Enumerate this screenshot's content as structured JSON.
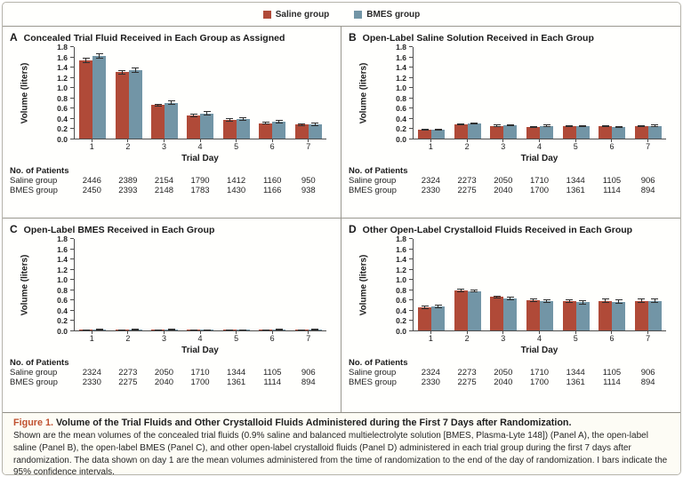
{
  "legend": {
    "items": [
      {
        "label": "Saline group",
        "color": "#b04a38"
      },
      {
        "label": "BMES group",
        "color": "#7295a6"
      }
    ]
  },
  "labels": {
    "no_of_patients": "No. of Patients"
  },
  "chart_data": [
    {
      "type": "bar",
      "panel": "A",
      "title": "Concealed Trial Fluid Received in Each Group as Assigned",
      "categories": [
        "1",
        "2",
        "3",
        "4",
        "5",
        "6",
        "7"
      ],
      "series": [
        {
          "name": "Saline group",
          "color": "#b04a38",
          "values": [
            1.52,
            1.29,
            0.65,
            0.45,
            0.36,
            0.3,
            0.27
          ],
          "ci": [
            0.05,
            0.05,
            0.03,
            0.03,
            0.03,
            0.03,
            0.03
          ]
        },
        {
          "name": "BMES group",
          "color": "#7295a6",
          "values": [
            1.61,
            1.33,
            0.7,
            0.49,
            0.38,
            0.33,
            0.28
          ],
          "ci": [
            0.05,
            0.05,
            0.04,
            0.04,
            0.03,
            0.04,
            0.04
          ]
        }
      ],
      "xlabel": "Trial Day",
      "ylabel": "Volume (liters)",
      "ylim": [
        0,
        1.8
      ],
      "yticks": [
        0.0,
        0.2,
        0.4,
        0.6,
        0.8,
        1.0,
        1.2,
        1.4,
        1.6,
        1.8
      ],
      "patients": [
        {
          "label": "Saline group",
          "values": [
            "2446",
            "2389",
            "2154",
            "1790",
            "1412",
            "1160",
            "950"
          ]
        },
        {
          "label": "BMES group",
          "values": [
            "2450",
            "2393",
            "2148",
            "1783",
            "1430",
            "1166",
            "938"
          ]
        }
      ]
    },
    {
      "type": "bar",
      "panel": "B",
      "title": "Open-Label Saline Solution Received in Each Group",
      "categories": [
        "1",
        "2",
        "3",
        "4",
        "5",
        "6",
        "7"
      ],
      "series": [
        {
          "name": "Saline group",
          "color": "#b04a38",
          "values": [
            0.17,
            0.28,
            0.25,
            0.23,
            0.24,
            0.24,
            0.24
          ],
          "ci": [
            0.015,
            0.02,
            0.02,
            0.02,
            0.02,
            0.02,
            0.02
          ]
        },
        {
          "name": "BMES group",
          "color": "#7295a6",
          "values": [
            0.18,
            0.3,
            0.26,
            0.25,
            0.24,
            0.23,
            0.25
          ],
          "ci": [
            0.015,
            0.02,
            0.02,
            0.02,
            0.02,
            0.02,
            0.02
          ]
        }
      ],
      "xlabel": "Trial Day",
      "ylabel": "Volume (liters)",
      "ylim": [
        0,
        1.8
      ],
      "yticks": [
        0.0,
        0.2,
        0.4,
        0.6,
        0.8,
        1.0,
        1.2,
        1.4,
        1.6,
        1.8
      ],
      "patients": [
        {
          "label": "Saline group",
          "values": [
            "2324",
            "2273",
            "2050",
            "1710",
            "1344",
            "1105",
            "906"
          ]
        },
        {
          "label": "BMES group",
          "values": [
            "2330",
            "2275",
            "2040",
            "1700",
            "1361",
            "1114",
            "894"
          ]
        }
      ]
    },
    {
      "type": "bar",
      "panel": "C",
      "title": "Open-Label BMES Received in Each Group",
      "categories": [
        "1",
        "2",
        "3",
        "4",
        "5",
        "6",
        "7"
      ],
      "series": [
        {
          "name": "Saline group",
          "color": "#b04a38",
          "values": [
            0.01,
            0.01,
            0.01,
            0.01,
            0.01,
            0.01,
            0.01
          ],
          "ci": [
            0.01,
            0.01,
            0.01,
            0.01,
            0.01,
            0.01,
            0.01
          ]
        },
        {
          "name": "BMES group",
          "color": "#7295a6",
          "values": [
            0.02,
            0.02,
            0.02,
            0.01,
            0.01,
            0.02,
            0.02
          ],
          "ci": [
            0.01,
            0.01,
            0.01,
            0.01,
            0.01,
            0.01,
            0.01
          ]
        }
      ],
      "xlabel": "Trial Day",
      "ylabel": "Volume (liters)",
      "ylim": [
        0,
        1.8
      ],
      "yticks": [
        0.0,
        0.2,
        0.4,
        0.6,
        0.8,
        1.0,
        1.2,
        1.4,
        1.6,
        1.8
      ],
      "patients": [
        {
          "label": "Saline group",
          "values": [
            "2324",
            "2273",
            "2050",
            "1710",
            "1344",
            "1105",
            "906"
          ]
        },
        {
          "label": "BMES group",
          "values": [
            "2330",
            "2275",
            "2040",
            "1700",
            "1361",
            "1114",
            "894"
          ]
        }
      ]
    },
    {
      "type": "bar",
      "panel": "D",
      "title": "Other Open-Label Crystalloid Fluids Received in Each Group",
      "categories": [
        "1",
        "2",
        "3",
        "4",
        "5",
        "6",
        "7"
      ],
      "series": [
        {
          "name": "Saline group",
          "color": "#b04a38",
          "values": [
            0.45,
            0.78,
            0.65,
            0.59,
            0.57,
            0.58,
            0.58
          ],
          "ci": [
            0.03,
            0.03,
            0.03,
            0.03,
            0.04,
            0.04,
            0.05
          ]
        },
        {
          "name": "BMES group",
          "color": "#7295a6",
          "values": [
            0.47,
            0.77,
            0.62,
            0.57,
            0.55,
            0.56,
            0.58
          ],
          "ci": [
            0.03,
            0.03,
            0.03,
            0.03,
            0.04,
            0.04,
            0.05
          ]
        }
      ],
      "xlabel": "Trial Day",
      "ylabel": "Volume (liters)",
      "ylim": [
        0,
        1.8
      ],
      "yticks": [
        0.0,
        0.2,
        0.4,
        0.6,
        0.8,
        1.0,
        1.2,
        1.4,
        1.6,
        1.8
      ],
      "patients": [
        {
          "label": "Saline group",
          "values": [
            "2324",
            "2273",
            "2050",
            "1710",
            "1344",
            "1105",
            "906"
          ]
        },
        {
          "label": "BMES group",
          "values": [
            "2330",
            "2275",
            "2040",
            "1700",
            "1361",
            "1114",
            "894"
          ]
        }
      ]
    }
  ],
  "caption": {
    "label": "Figure 1.",
    "title": "Volume of the Trial Fluids and Other Crystalloid Fluids Administered during the First 7 Days after Randomization.",
    "body": "Shown are the mean volumes of the concealed trial fluids (0.9% saline and balanced multielectrolyte solution [BMES, Plasma-Lyte 148]) (Panel A), the open-label saline (Panel B), the open-label BMES (Panel C), and other open-label crystalloid fluids (Panel D) administered in each trial group during the first 7 days after randomization. The data shown on day 1 are the mean volumes administered from the time of randomization to the end of the day of randomization. I bars indicate the 95% confidence intervals."
  }
}
